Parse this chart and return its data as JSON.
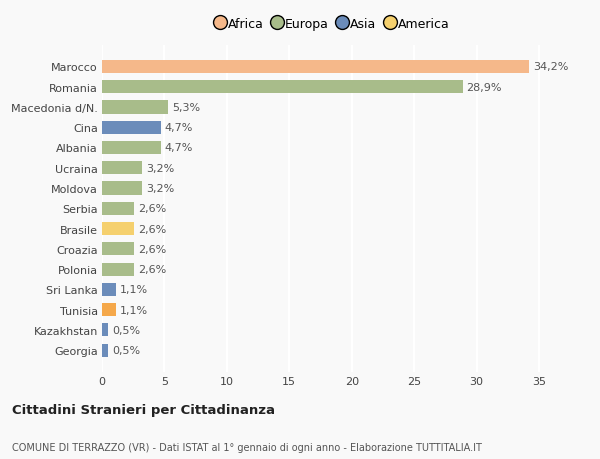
{
  "categories": [
    "Georgia",
    "Kazakhstan",
    "Tunisia",
    "Sri Lanka",
    "Polonia",
    "Croazia",
    "Brasile",
    "Serbia",
    "Moldova",
    "Ucraina",
    "Albania",
    "Cina",
    "Macedonia d/N.",
    "Romania",
    "Marocco"
  ],
  "values": [
    0.5,
    0.5,
    1.1,
    1.1,
    2.6,
    2.6,
    2.6,
    2.6,
    3.2,
    3.2,
    4.7,
    4.7,
    5.3,
    28.9,
    34.2
  ],
  "labels": [
    "0,5%",
    "0,5%",
    "1,1%",
    "1,1%",
    "2,6%",
    "2,6%",
    "2,6%",
    "2,6%",
    "3,2%",
    "3,2%",
    "4,7%",
    "4,7%",
    "5,3%",
    "28,9%",
    "34,2%"
  ],
  "colors": [
    "#6b8cba",
    "#6b8cba",
    "#f5a84a",
    "#6b8cba",
    "#a8bc8a",
    "#a8bc8a",
    "#f5d06e",
    "#a8bc8a",
    "#a8bc8a",
    "#a8bc8a",
    "#a8bc8a",
    "#6b8cba",
    "#a8bc8a",
    "#a8bc8a",
    "#f5b88a"
  ],
  "legend_labels": [
    "Africa",
    "Europa",
    "Asia",
    "America"
  ],
  "legend_colors": [
    "#f5b88a",
    "#a8bc8a",
    "#6b8cba",
    "#f5d06e"
  ],
  "title": "Cittadini Stranieri per Cittadinanza",
  "subtitle": "COMUNE DI TERRAZZO (VR) - Dati ISTAT al 1° gennaio di ogni anno - Elaborazione TUTTITALIA.IT",
  "xlim": [
    0,
    37
  ],
  "xticks": [
    0,
    5,
    10,
    15,
    20,
    25,
    30,
    35
  ],
  "background_color": "#f9f9f9",
  "bar_height": 0.65,
  "label_fontsize": 8,
  "tick_fontsize": 8,
  "grid_color": "#ffffff"
}
